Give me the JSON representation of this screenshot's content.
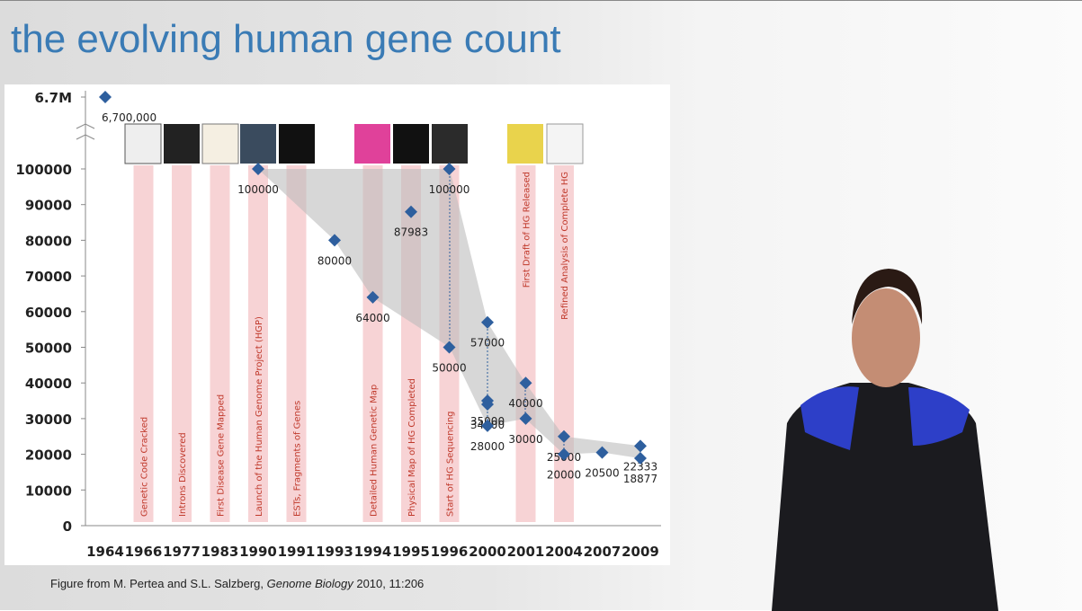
{
  "title": "the evolving human gene count",
  "caption": {
    "parts": [
      "Figure from M. Pertea and S.L. Salzberg, ",
      "Genome Biology",
      " 2010, 11:206"
    ]
  },
  "chart_data": {
    "type": "scatter",
    "categories": [
      "1964",
      "1966",
      "1977",
      "1983",
      "1990",
      "1991",
      "1993",
      "1994",
      "1995",
      "1996",
      "2000",
      "2001",
      "2004",
      "2007",
      "2009"
    ],
    "x": [
      "1964",
      "1990",
      "1993",
      "1994",
      "1995",
      "1996",
      "1996",
      "2000",
      "2000",
      "2000",
      "2000",
      "2001",
      "2001",
      "2004",
      "2004",
      "2007",
      "2009",
      "2009"
    ],
    "values": [
      6700000,
      100000,
      80000,
      64000,
      87983,
      100000,
      50000,
      57000,
      35000,
      34000,
      28000,
      40000,
      30000,
      25000,
      20000,
      20500,
      22333,
      18877
    ],
    "value_labels": [
      "6,700,000",
      "100000",
      "80000",
      "64000",
      "87983",
      "100000",
      "50000",
      "57000",
      "35000",
      "34000",
      "28000",
      "40000",
      "30000",
      "25000",
      "20000",
      "20500",
      "22333",
      "18877"
    ],
    "color": "#2e5f9e",
    "ylim": [
      0,
      100000
    ],
    "yticks": [
      0,
      10000,
      20000,
      30000,
      40000,
      50000,
      60000,
      70000,
      80000,
      90000,
      100000,
      {
        "value": 6700000,
        "label": "6.7M"
      }
    ],
    "axis_break": true,
    "events": [
      {
        "x": "1966",
        "label": "Genetic Code Cracked",
        "anchor": "bottom"
      },
      {
        "x": "1977",
        "label": "Introns Discovered",
        "anchor": "bottom"
      },
      {
        "x": "1983",
        "label": "First Disease Gene Mapped",
        "anchor": "bottom"
      },
      {
        "x": "1990",
        "label": "Launch of the Human Genome Project (HGP)",
        "anchor": "bottom"
      },
      {
        "x": "1991",
        "label": "ESTs, Fragments of Genes",
        "anchor": "bottom"
      },
      {
        "x": "1994",
        "label": "Detailed Human Genetic Map",
        "anchor": "bottom"
      },
      {
        "x": "1995",
        "label": "Physical Map of HG Completed",
        "anchor": "bottom"
      },
      {
        "x": "1996",
        "label": "Start of HG Sequencing",
        "anchor": "bottom"
      },
      {
        "x": "2001",
        "label": "First Draft of HG Released",
        "anchor": "top"
      },
      {
        "x": "2004",
        "label": "Refined Analysis of Complete HG",
        "anchor": "top"
      }
    ]
  }
}
